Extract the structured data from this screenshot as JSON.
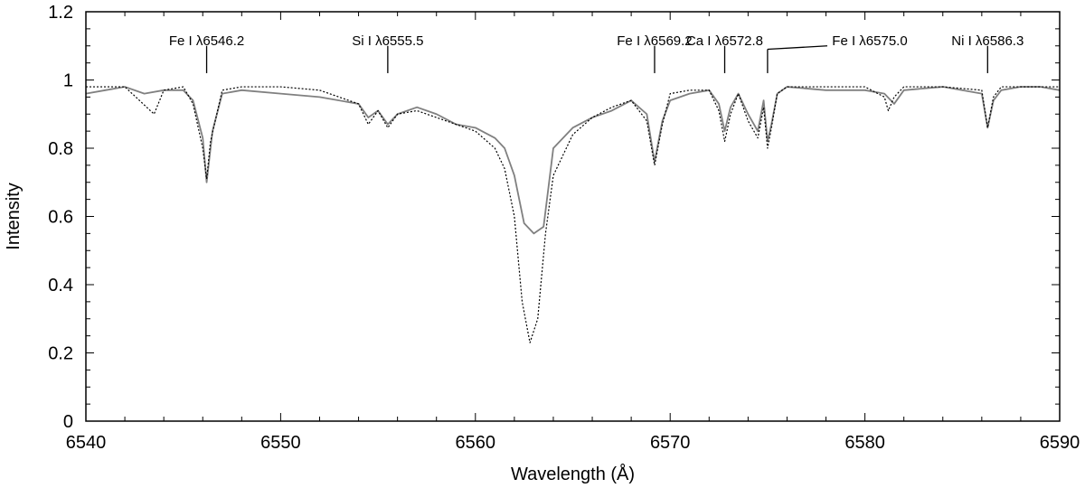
{
  "chart_data": {
    "type": "line",
    "title": "",
    "xlabel": "Wavelength (Å)",
    "ylabel": "Intensity",
    "xlim": [
      6540,
      6590
    ],
    "ylim": [
      0,
      1.2
    ],
    "x_ticks": [
      6540,
      6550,
      6560,
      6570,
      6580,
      6590
    ],
    "x_tick_labels": [
      "6540",
      "6550",
      "6560",
      "6570",
      "6580",
      "6590"
    ],
    "y_ticks": [
      0,
      0.2,
      0.4,
      0.6,
      0.8,
      1,
      1.2
    ],
    "y_tick_labels": [
      "0",
      "0.2",
      "0.4",
      "0.6",
      "0.8",
      "1",
      "1.2"
    ],
    "grid": false,
    "legend": "none",
    "colors": {
      "observed": "#808080",
      "model": "#000000"
    },
    "series": [
      {
        "style": "solid",
        "x": [
          6540,
          6541,
          6542,
          6543,
          6544,
          6545,
          6545.5,
          6546,
          6546.2,
          6546.5,
          6547,
          6548,
          6550,
          6552,
          6554,
          6554.5,
          6555,
          6555.5,
          6556,
          6557,
          6558,
          6559,
          6560,
          6561,
          6561.5,
          6562,
          6562.5,
          6563,
          6563.5,
          6564,
          6565,
          6566,
          6567,
          6568,
          6568.8,
          6569.2,
          6569.6,
          6570,
          6571,
          6572,
          6572.5,
          6572.8,
          6573.1,
          6573.5,
          6574,
          6574.5,
          6574.8,
          6575.0,
          6575.2,
          6575.5,
          6576,
          6578,
          6580,
          6581,
          6581.5,
          6582,
          6584,
          6586,
          6586.3,
          6586.6,
          6587,
          6588,
          6589,
          6590
        ],
        "y": [
          0.96,
          0.97,
          0.98,
          0.96,
          0.97,
          0.97,
          0.94,
          0.83,
          0.7,
          0.85,
          0.96,
          0.97,
          0.96,
          0.95,
          0.93,
          0.89,
          0.91,
          0.87,
          0.9,
          0.92,
          0.9,
          0.87,
          0.86,
          0.83,
          0.8,
          0.72,
          0.58,
          0.55,
          0.57,
          0.8,
          0.86,
          0.89,
          0.91,
          0.94,
          0.9,
          0.76,
          0.88,
          0.94,
          0.96,
          0.97,
          0.93,
          0.85,
          0.92,
          0.96,
          0.9,
          0.85,
          0.94,
          0.82,
          0.87,
          0.96,
          0.98,
          0.97,
          0.97,
          0.96,
          0.93,
          0.97,
          0.98,
          0.96,
          0.86,
          0.94,
          0.97,
          0.98,
          0.98,
          0.97
        ]
      },
      {
        "style": "dotted",
        "x": [
          6540,
          6542,
          6543.5,
          6544,
          6545,
          6545.5,
          6546,
          6546.2,
          6546.4,
          6547,
          6548,
          6550,
          6552,
          6553,
          6554,
          6554.5,
          6555,
          6555.5,
          6556,
          6557,
          6558,
          6559,
          6560,
          6561,
          6561.5,
          6562,
          6562.4,
          6562.8,
          6563.2,
          6563.6,
          6564,
          6565,
          6566,
          6567,
          6568,
          6568.8,
          6569.2,
          6569.6,
          6570,
          6571,
          6572,
          6572.5,
          6572.8,
          6573.1,
          6573.5,
          6574,
          6574.5,
          6574.8,
          6575.0,
          6575.2,
          6575.5,
          6576,
          6578,
          6580,
          6581,
          6581.2,
          6581.5,
          6582,
          6584,
          6586,
          6586.3,
          6586.6,
          6587,
          6588,
          6590
        ],
        "y": [
          0.98,
          0.98,
          0.9,
          0.97,
          0.98,
          0.93,
          0.8,
          0.71,
          0.82,
          0.97,
          0.98,
          0.98,
          0.97,
          0.95,
          0.93,
          0.87,
          0.91,
          0.86,
          0.9,
          0.91,
          0.89,
          0.87,
          0.85,
          0.8,
          0.74,
          0.6,
          0.35,
          0.23,
          0.3,
          0.55,
          0.72,
          0.84,
          0.89,
          0.92,
          0.94,
          0.88,
          0.75,
          0.87,
          0.96,
          0.97,
          0.97,
          0.91,
          0.82,
          0.9,
          0.96,
          0.88,
          0.83,
          0.92,
          0.8,
          0.86,
          0.96,
          0.98,
          0.98,
          0.98,
          0.95,
          0.91,
          0.95,
          0.98,
          0.98,
          0.97,
          0.86,
          0.95,
          0.98,
          0.98,
          0.98
        ]
      }
    ],
    "annotations": [
      {
        "label": "Fe I λ6546.2",
        "x": 6546.2
      },
      {
        "label": "Si I λ6555.5",
        "x": 6555.5
      },
      {
        "label": "Fe I λ6569.2",
        "x": 6569.2
      },
      {
        "label": "Ca I λ6572.8",
        "x": 6572.8
      },
      {
        "label": "Fe I λ6575.0",
        "x": 6575.0
      },
      {
        "label": "Ni I λ6586.3",
        "x": 6586.3
      }
    ]
  }
}
